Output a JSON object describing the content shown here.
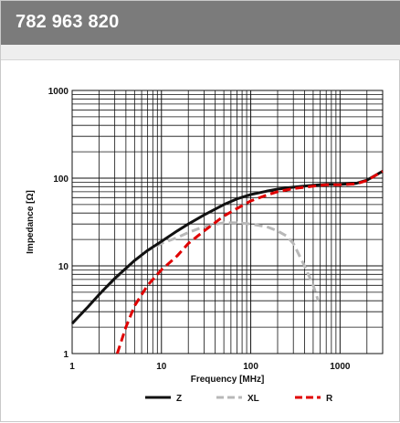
{
  "header": {
    "title": "782 963 820"
  },
  "chart_data": {
    "type": "line",
    "title": "",
    "xlabel": "Frequency [MHz]",
    "ylabel": "Impedance [Ω]",
    "xscale": "log",
    "yscale": "log",
    "xlim": [
      1,
      3000
    ],
    "ylim": [
      1,
      1000
    ],
    "x_ticks": [
      {
        "value": 1,
        "label": "1"
      },
      {
        "value": 10,
        "label": "10"
      },
      {
        "value": 100,
        "label": "100"
      },
      {
        "value": 1000,
        "label": "1000"
      }
    ],
    "y_ticks": [
      {
        "value": 1,
        "label": "1"
      },
      {
        "value": 10,
        "label": "10"
      },
      {
        "value": 100,
        "label": "100"
      },
      {
        "value": 1000,
        "label": "1000"
      }
    ],
    "grid": true,
    "legend_position": "bottom",
    "series": [
      {
        "name": "Z",
        "color": "#111111",
        "style": "solid",
        "points": [
          [
            1,
            2.2
          ],
          [
            1.5,
            3.4
          ],
          [
            2,
            4.7
          ],
          [
            3,
            7.2
          ],
          [
            5,
            11.5
          ],
          [
            7,
            15
          ],
          [
            10,
            19
          ],
          [
            15,
            25
          ],
          [
            20,
            30
          ],
          [
            30,
            38
          ],
          [
            50,
            50
          ],
          [
            70,
            58
          ],
          [
            100,
            65
          ],
          [
            150,
            71
          ],
          [
            200,
            75
          ],
          [
            300,
            79
          ],
          [
            500,
            83
          ],
          [
            700,
            85
          ],
          [
            1000,
            85
          ],
          [
            1500,
            87
          ],
          [
            2000,
            95
          ],
          [
            3000,
            120
          ]
        ]
      },
      {
        "name": "XL",
        "color": "#b8b8b8",
        "style": "dashed",
        "points": [
          [
            1,
            2.2
          ],
          [
            1.5,
            3.4
          ],
          [
            2,
            4.7
          ],
          [
            3,
            7
          ],
          [
            5,
            11.5
          ],
          [
            7,
            15
          ],
          [
            10,
            18
          ],
          [
            15,
            21
          ],
          [
            20,
            24
          ],
          [
            30,
            28
          ],
          [
            50,
            31
          ],
          [
            70,
            31
          ],
          [
            100,
            30
          ],
          [
            150,
            28
          ],
          [
            200,
            25
          ],
          [
            250,
            22
          ],
          [
            300,
            18
          ],
          [
            400,
            10
          ],
          [
            500,
            6
          ],
          [
            570,
            4
          ]
        ]
      },
      {
        "name": "R",
        "color": "#e00000",
        "style": "dashed",
        "points": [
          [
            3.2,
            1
          ],
          [
            4,
            2
          ],
          [
            5,
            3.5
          ],
          [
            7,
            6
          ],
          [
            10,
            9
          ],
          [
            15,
            13
          ],
          [
            20,
            18
          ],
          [
            30,
            25
          ],
          [
            50,
            37
          ],
          [
            70,
            45
          ],
          [
            100,
            55
          ],
          [
            150,
            64
          ],
          [
            200,
            70
          ],
          [
            300,
            76
          ],
          [
            500,
            81
          ],
          [
            700,
            84
          ],
          [
            1000,
            84
          ],
          [
            1500,
            86
          ],
          [
            2000,
            94
          ],
          [
            3000,
            120
          ]
        ]
      }
    ]
  }
}
